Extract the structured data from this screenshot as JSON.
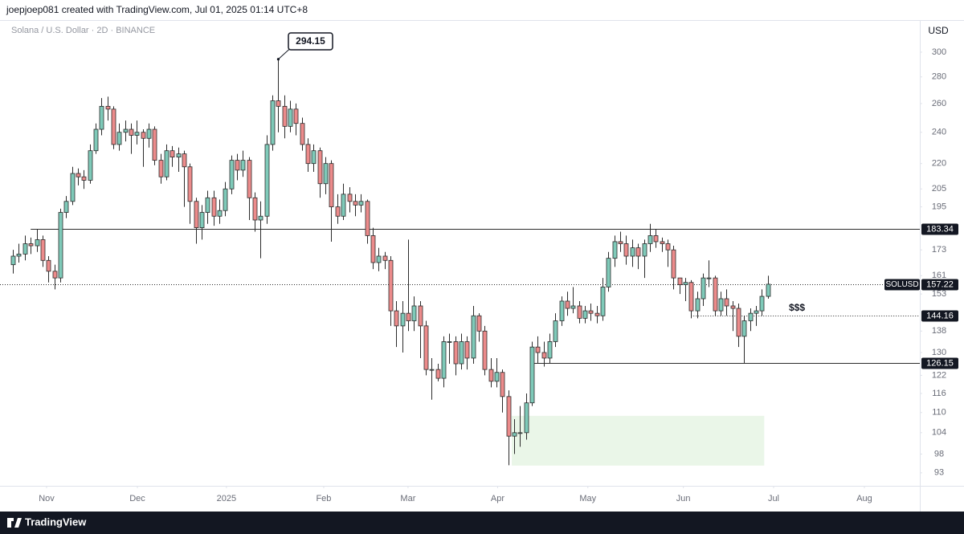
{
  "header": {
    "text": "joepjoep081 created with TradingView.com, Jul 01, 2025 01:14 UTC+8"
  },
  "footer": {
    "brand": "TradingView"
  },
  "chart_data": {
    "type": "candlestick",
    "title": "Solana / U.S. Dollar · 2D · BINANCE",
    "currency": "USD",
    "log_scale": true,
    "grid": false,
    "colors": {
      "up": "#7fcab9",
      "down": "#ec8b8b",
      "wick": "#2b2b2b"
    },
    "open": [
      166,
      170,
      171,
      176,
      175,
      178,
      168,
      163,
      160,
      192,
      198,
      214,
      212,
      210,
      228,
      242,
      258,
      256,
      232,
      240,
      242,
      238,
      240,
      236,
      242,
      222,
      212,
      228,
      224,
      226,
      218,
      198,
      184,
      192,
      200,
      190,
      193,
      205,
      222,
      216,
      222,
      200,
      188,
      190,
      232,
      262,
      258,
      244,
      256,
      246,
      232,
      220,
      228,
      208,
      220,
      195,
      190,
      202,
      198,
      196,
      198,
      180,
      167,
      170,
      168,
      146,
      140,
      145,
      142,
      148,
      140,
      124,
      124,
      121,
      134,
      134,
      126,
      134,
      128,
      144,
      138,
      124,
      120,
      123,
      115,
      103,
      104,
      104,
      113,
      132,
      130,
      128,
      134,
      142,
      150,
      147,
      148,
      143,
      146,
      145,
      144,
      156,
      169,
      177,
      176,
      170,
      174,
      170,
      176,
      180,
      177,
      176,
      173,
      160,
      157,
      158,
      146,
      151,
      160,
      160,
      146,
      151,
      148,
      147,
      136,
      142,
      145,
      146,
      152
    ],
    "high": [
      173,
      176,
      180,
      179,
      183,
      180,
      170,
      166,
      194,
      201,
      218,
      217,
      216,
      232,
      246,
      264,
      265,
      258,
      246,
      248,
      246,
      248,
      242,
      246,
      244,
      226,
      232,
      231,
      230,
      228,
      220,
      200,
      196,
      204,
      204,
      199,
      209,
      225,
      226,
      228,
      224,
      203,
      198,
      238,
      266,
      294.15,
      266,
      262,
      260,
      250,
      236,
      232,
      230,
      224,
      222,
      202,
      208,
      206,
      202,
      202,
      199,
      184,
      174,
      172,
      170,
      150,
      150,
      178,
      152,
      150,
      142,
      128,
      126,
      136,
      137,
      136,
      137,
      136,
      148,
      145,
      140,
      128,
      128,
      124,
      117,
      108,
      112,
      116,
      134,
      136,
      134,
      137,
      145,
      152,
      154,
      156,
      150,
      148,
      149,
      148,
      160,
      172,
      180,
      182,
      180,
      178,
      176,
      178,
      186,
      183,
      179,
      178,
      175,
      160,
      160,
      159,
      154,
      162,
      168,
      161,
      154,
      155,
      150,
      149,
      144,
      147,
      148,
      155,
      161
    ],
    "low": [
      162,
      167,
      168,
      171,
      172,
      165,
      158,
      155,
      158,
      189,
      196,
      207,
      205,
      208,
      226,
      238,
      248,
      229,
      228,
      234,
      226,
      232,
      218,
      230,
      219,
      208,
      210,
      218,
      215,
      195,
      186,
      176,
      178,
      186,
      185,
      186,
      190,
      202,
      210,
      212,
      188,
      182,
      169,
      186,
      228,
      240,
      236,
      240,
      238,
      228,
      215,
      215,
      200,
      202,
      177,
      186,
      188,
      192,
      190,
      192,
      176,
      164,
      163,
      164,
      140,
      132,
      130,
      138,
      138,
      128,
      122,
      114,
      120,
      118,
      126,
      122,
      124,
      124,
      126,
      134,
      122,
      118,
      118,
      110,
      95,
      98,
      100,
      102,
      112,
      126,
      125,
      126,
      132,
      140,
      144,
      145,
      141,
      141,
      142,
      141,
      142,
      154,
      165,
      172,
      166,
      165,
      164,
      160,
      172,
      174,
      172,
      165,
      155,
      153,
      150,
      143,
      143,
      148,
      156,
      144,
      144,
      144,
      138,
      132,
      126.15,
      138,
      140,
      144,
      151
    ],
    "close": [
      170,
      171,
      176,
      175,
      178,
      168,
      163,
      160,
      192,
      198,
      214,
      212,
      210,
      228,
      242,
      258,
      256,
      232,
      240,
      242,
      238,
      240,
      236,
      242,
      222,
      212,
      228,
      224,
      226,
      218,
      198,
      184,
      192,
      200,
      190,
      193,
      205,
      222,
      216,
      222,
      200,
      188,
      190,
      232,
      262,
      258,
      244,
      256,
      246,
      232,
      220,
      228,
      208,
      220,
      195,
      190,
      202,
      198,
      196,
      198,
      180,
      167,
      170,
      168,
      146,
      140,
      145,
      142,
      148,
      140,
      124,
      124,
      121,
      134,
      134,
      126,
      134,
      128,
      144,
      138,
      124,
      120,
      123,
      115,
      103,
      104,
      104,
      113,
      132,
      130,
      128,
      134,
      142,
      150,
      147,
      148,
      143,
      146,
      145,
      144,
      156,
      169,
      177,
      176,
      170,
      174,
      170,
      176,
      180,
      177,
      176,
      173,
      160,
      157,
      158,
      146,
      151,
      160,
      160,
      146,
      151,
      148,
      147,
      136,
      142,
      145,
      146,
      152,
      157.22
    ],
    "ylim": [
      89.7,
      328
    ],
    "yticks": [
      300,
      280,
      260,
      240,
      220,
      205,
      195,
      173,
      161,
      153,
      138,
      130,
      122,
      116,
      110,
      104,
      98,
      93
    ],
    "xlim": [
      -2.2,
      153.8
    ],
    "xticks": [
      {
        "value": 5.7,
        "label": "Nov"
      },
      {
        "value": 21.1,
        "label": "Dec"
      },
      {
        "value": 36.2,
        "label": "2025"
      },
      {
        "value": 52.7,
        "label": "Feb"
      },
      {
        "value": 67.0,
        "label": "Mar"
      },
      {
        "value": 82.2,
        "label": "Apr"
      },
      {
        "value": 97.5,
        "label": "May"
      },
      {
        "value": 113.7,
        "label": "Jun"
      },
      {
        "value": 129.0,
        "label": "Jul"
      },
      {
        "value": 144.4,
        "label": "Aug"
      }
    ],
    "levels": [
      {
        "value": 183.34,
        "style": "solid"
      },
      {
        "value": 157.22,
        "label": "SOLUSD",
        "style": "dotted"
      },
      {
        "value": 144.16,
        "style": "dotted"
      },
      {
        "value": 126.15,
        "style": "solid"
      }
    ],
    "zone": {
      "low": 94.9,
      "high": 109.0,
      "color": "#eaf6e8"
    },
    "callout": 294.15,
    "annotations": [
      "$$$"
    ]
  }
}
